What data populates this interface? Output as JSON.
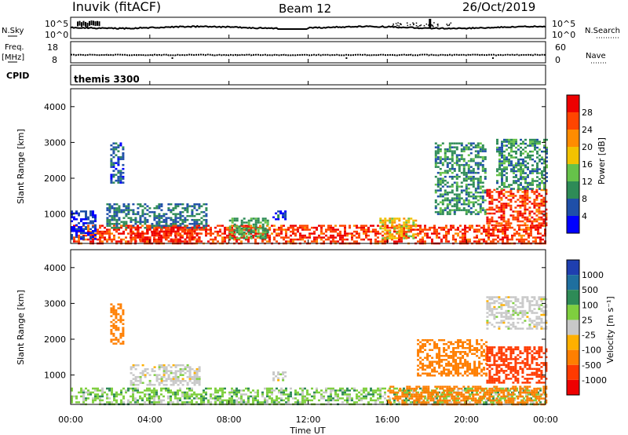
{
  "header": {
    "station": "Inuvik (fitACF)",
    "beam": "Beam 12",
    "date": "26/Oct/2019"
  },
  "top_panels": {
    "nsky_label": "N.Sky",
    "nsearch_label": "N.Search",
    "nsky_ticks": [
      "10^5",
      "10^0"
    ],
    "nsearch_ticks": [
      "10^5",
      "10^0"
    ],
    "freq_label_top": "Freq.",
    "freq_label_unit": "[MHz]",
    "freq_ticks": [
      "18",
      "8"
    ],
    "nave_label": "Nave",
    "nave_ticks": [
      "60",
      "0"
    ],
    "cpid_label": "CPID",
    "cpid_value": "themis 3300"
  },
  "colors": {
    "power_scale": [
      "#0000ff",
      "#1f4fa8",
      "#2e8b57",
      "#66c24a",
      "#f2c200",
      "#ff8c00",
      "#ff4500",
      "#ee0000"
    ],
    "velocity_scale": [
      "#1f3fb0",
      "#1f6f9f",
      "#2e8b57",
      "#7fcf3f",
      "#c8c8c8",
      "#ffb000",
      "#ff7f00",
      "#ff3a00",
      "#ee0000"
    ],
    "trace": "#000000"
  },
  "chart_data": [
    {
      "type": "heatmap",
      "title": "Power",
      "xlabel": "Time UT",
      "ylabel": "Slant Range [km]",
      "x_ticks": [
        "00:00",
        "04:00",
        "08:00",
        "12:00",
        "16:00",
        "20:00",
        "00:00"
      ],
      "xlim_hours": [
        0,
        24
      ],
      "ylim": [
        180,
        4500
      ],
      "y_ticks": [
        1000,
        2000,
        3000,
        4000
      ],
      "colorbar": {
        "label": "Power [dB]",
        "range": [
          0,
          32
        ],
        "ticks": [
          4,
          8,
          12,
          16,
          20,
          24,
          28
        ]
      },
      "regions": [
        {
          "t": [
            0.0,
            24.0
          ],
          "r": [
            180,
            700
          ],
          "value": 27
        },
        {
          "t": [
            0.0,
            1.2
          ],
          "r": [
            300,
            1100
          ],
          "value": 4
        },
        {
          "t": [
            2.0,
            2.7
          ],
          "r": [
            1900,
            3000
          ],
          "value": 6
        },
        {
          "t": [
            1.8,
            6.8
          ],
          "r": [
            600,
            1300
          ],
          "value": 8
        },
        {
          "t": [
            3.0,
            6.5
          ],
          "r": [
            250,
            650
          ],
          "value": 29
        },
        {
          "t": [
            8.0,
            10.0
          ],
          "r": [
            300,
            900
          ],
          "value": 12
        },
        {
          "t": [
            10.2,
            10.8
          ],
          "r": [
            850,
            1100
          ],
          "value": 5
        },
        {
          "t": [
            15.6,
            17.5
          ],
          "r": [
            300,
            900
          ],
          "value": 18
        },
        {
          "t": [
            18.4,
            21.0
          ],
          "r": [
            1000,
            3000
          ],
          "value": 10
        },
        {
          "t": [
            21.0,
            24.0
          ],
          "r": [
            700,
            1700
          ],
          "value": 27
        },
        {
          "t": [
            21.5,
            24.0
          ],
          "r": [
            1700,
            3100
          ],
          "value": 10
        }
      ]
    },
    {
      "type": "heatmap",
      "title": "Velocity",
      "xlabel": "Time UT",
      "ylabel": "Slant Range [km]",
      "x_ticks": [
        "00:00",
        "04:00",
        "08:00",
        "12:00",
        "16:00",
        "20:00",
        "00:00"
      ],
      "xlim_hours": [
        0,
        24
      ],
      "ylim": [
        180,
        4500
      ],
      "y_ticks": [
        1000,
        2000,
        3000,
        4000
      ],
      "colorbar": {
        "label": "Velocity [m s⁻¹]",
        "levels": [
          "1000",
          "500",
          "100",
          "25",
          "-25",
          "-100",
          "-500",
          "-1000"
        ]
      },
      "regions": [
        {
          "t": [
            0.0,
            24.0
          ],
          "r": [
            180,
            650
          ],
          "value": 40
        },
        {
          "t": [
            3.0,
            6.5
          ],
          "r": [
            700,
            1300
          ],
          "value": 0
        },
        {
          "t": [
            10.2,
            10.8
          ],
          "r": [
            850,
            1100
          ],
          "value": 0
        },
        {
          "t": [
            2.0,
            2.7
          ],
          "r": [
            1900,
            3000
          ],
          "value": -200
        },
        {
          "t": [
            16.0,
            24.0
          ],
          "r": [
            200,
            700
          ],
          "value": -150
        },
        {
          "t": [
            17.5,
            21.0
          ],
          "r": [
            1000,
            2000
          ],
          "value": -200
        },
        {
          "t": [
            21.0,
            24.0
          ],
          "r": [
            800,
            1800
          ],
          "value": -400
        },
        {
          "t": [
            21.0,
            24.0
          ],
          "r": [
            2300,
            3200
          ],
          "value": 0
        }
      ]
    }
  ]
}
